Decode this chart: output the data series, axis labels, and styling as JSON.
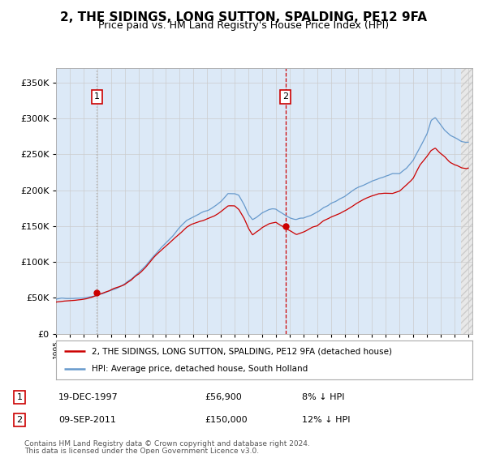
{
  "title": "2, THE SIDINGS, LONG SUTTON, SPALDING, PE12 9FA",
  "subtitle": "Price paid vs. HM Land Registry's House Price Index (HPI)",
  "legend_line1": "2, THE SIDINGS, LONG SUTTON, SPALDING, PE12 9FA (detached house)",
  "legend_line2": "HPI: Average price, detached house, South Holland",
  "sale1_label": "1",
  "sale1_date": "19-DEC-1997",
  "sale1_price": 56900,
  "sale1_price_str": "£56,900",
  "sale1_hpi": "8% ↓ HPI",
  "sale1_year": 1997.97,
  "sale2_label": "2",
  "sale2_date": "09-SEP-2011",
  "sale2_price": 150000,
  "sale2_price_str": "£150,000",
  "sale2_hpi": "12% ↓ HPI",
  "sale2_year": 2011.69,
  "footnote1": "Contains HM Land Registry data © Crown copyright and database right 2024.",
  "footnote2": "This data is licensed under the Open Government Licence v3.0.",
  "xmin": 1995.0,
  "xmax": 2025.3,
  "ymin": 0,
  "ymax": 370000,
  "hpi_color": "#6699cc",
  "price_color": "#cc0000",
  "bg_color": "#dce9f7",
  "grid_color": "#cccccc",
  "vline1_color": "#bbbbbb",
  "vline2_color": "#cc0000",
  "title_fontsize": 11,
  "subtitle_fontsize": 9
}
